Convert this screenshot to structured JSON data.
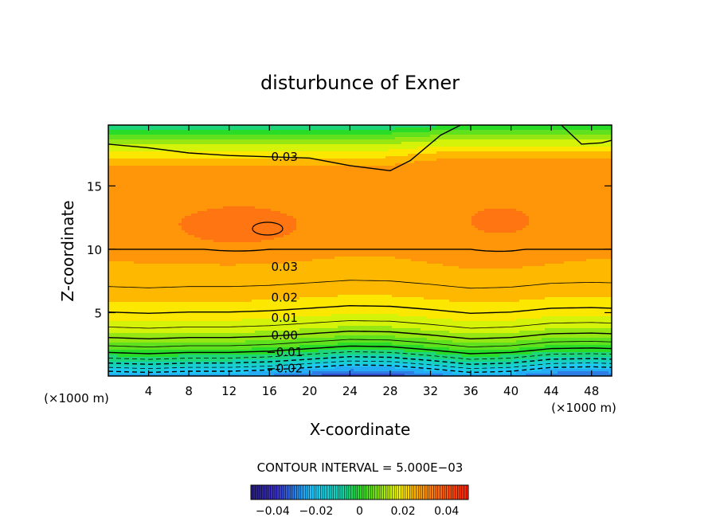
{
  "chart_data": {
    "type": "contour",
    "title": "disturbunce of Exner",
    "xlabel": "X-coordinate",
    "ylabel": "Z-coordinate",
    "x_unit_left": "(×1000 m)",
    "x_unit_right": "(×1000 m)",
    "xlim": [
      0,
      50
    ],
    "ylim": [
      0,
      19.8
    ],
    "xticks": [
      4,
      8,
      12,
      16,
      20,
      24,
      28,
      32,
      36,
      40,
      44,
      48
    ],
    "yticks": [
      5,
      10,
      15
    ],
    "contour_interval_text": "CONTOUR INTERVAL = 5.000E−03",
    "contour_labels": [
      {
        "text": "0.03",
        "x": 17.5,
        "z": 17.3
      },
      {
        "text": "0.03",
        "x": 17.5,
        "z": 8.6
      },
      {
        "text": "0.02",
        "x": 17.5,
        "z": 6.2
      },
      {
        "text": "0.01",
        "x": 17.5,
        "z": 4.6
      },
      {
        "text": "0.00",
        "x": 17.5,
        "z": 3.2
      },
      {
        "text": "−0.01",
        "x": 17.5,
        "z": 1.9
      },
      {
        "text": "−0.02",
        "x": 17.5,
        "z": 0.6
      }
    ],
    "colorbar": {
      "range": [
        -0.05,
        0.05
      ],
      "ticks": [
        {
          "value": -0.04,
          "label": "−0.04"
        },
        {
          "value": -0.02,
          "label": "−0.02"
        },
        {
          "value": 0,
          "label": "0"
        },
        {
          "value": 0.02,
          "label": "0.02"
        },
        {
          "value": 0.04,
          "label": "0.04"
        }
      ]
    }
  }
}
